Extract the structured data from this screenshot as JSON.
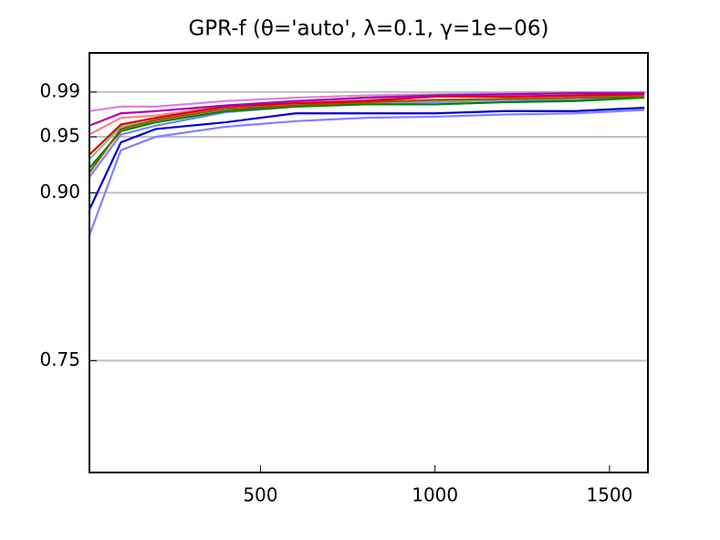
{
  "chart_data": {
    "type": "line",
    "title": "GPR-f (θ='auto', λ=0.1, γ=1e−06)",
    "x": [
      10,
      100,
      200,
      400,
      600,
      800,
      1000,
      1200,
      1400,
      1600
    ],
    "xlim": [
      10,
      1610
    ],
    "xticks": [
      500,
      1000,
      1500
    ],
    "ylim": [
      0.65,
      1.025
    ],
    "yticks": [
      {
        "value": 0.75,
        "label": "0.75"
      },
      {
        "value": 0.9,
        "label": "0.90"
      },
      {
        "value": 0.95,
        "label": "0.95"
      },
      {
        "value": 0.99,
        "label": "0.99"
      }
    ],
    "grid": true,
    "series": [
      {
        "color": "#8080ff",
        "values": [
          0.862,
          0.938,
          0.95,
          0.959,
          0.964,
          0.967,
          0.968,
          0.97,
          0.971,
          0.974
        ]
      },
      {
        "color": "#8080ff",
        "values": [
          0.914,
          0.952,
          0.96,
          0.972,
          0.977,
          0.98,
          0.981,
          0.983,
          0.983,
          0.985
        ]
      },
      {
        "color": "#80c080",
        "values": [
          0.93,
          0.959,
          0.965,
          0.975,
          0.979,
          0.981,
          0.982,
          0.984,
          0.985,
          0.987
        ]
      },
      {
        "color": "#ff8080",
        "values": [
          0.952,
          0.967,
          0.969,
          0.978,
          0.981,
          0.983,
          0.986,
          0.986,
          0.987,
          0.989
        ]
      },
      {
        "color": "#e080e0",
        "values": [
          0.973,
          0.977,
          0.977,
          0.982,
          0.985,
          0.987,
          0.988,
          0.989,
          0.99,
          0.99
        ]
      },
      {
        "color": "#0000cc",
        "values": [
          0.885,
          0.945,
          0.957,
          0.963,
          0.971,
          0.971,
          0.971,
          0.973,
          0.973,
          0.976
        ]
      },
      {
        "color": "#008000",
        "values": [
          0.922,
          0.955,
          0.963,
          0.973,
          0.977,
          0.979,
          0.979,
          0.981,
          0.982,
          0.985
        ]
      },
      {
        "color": "#806000",
        "values": [
          0.918,
          0.957,
          0.965,
          0.975,
          0.978,
          0.981,
          0.983,
          0.984,
          0.985,
          0.986
        ]
      },
      {
        "color": "#dd0000",
        "values": [
          0.934,
          0.961,
          0.967,
          0.977,
          0.98,
          0.982,
          0.986,
          0.986,
          0.987,
          0.988
        ]
      },
      {
        "color": "#b000b0",
        "values": [
          0.96,
          0.971,
          0.973,
          0.978,
          0.982,
          0.985,
          0.987,
          0.988,
          0.989,
          0.989
        ]
      }
    ]
  }
}
